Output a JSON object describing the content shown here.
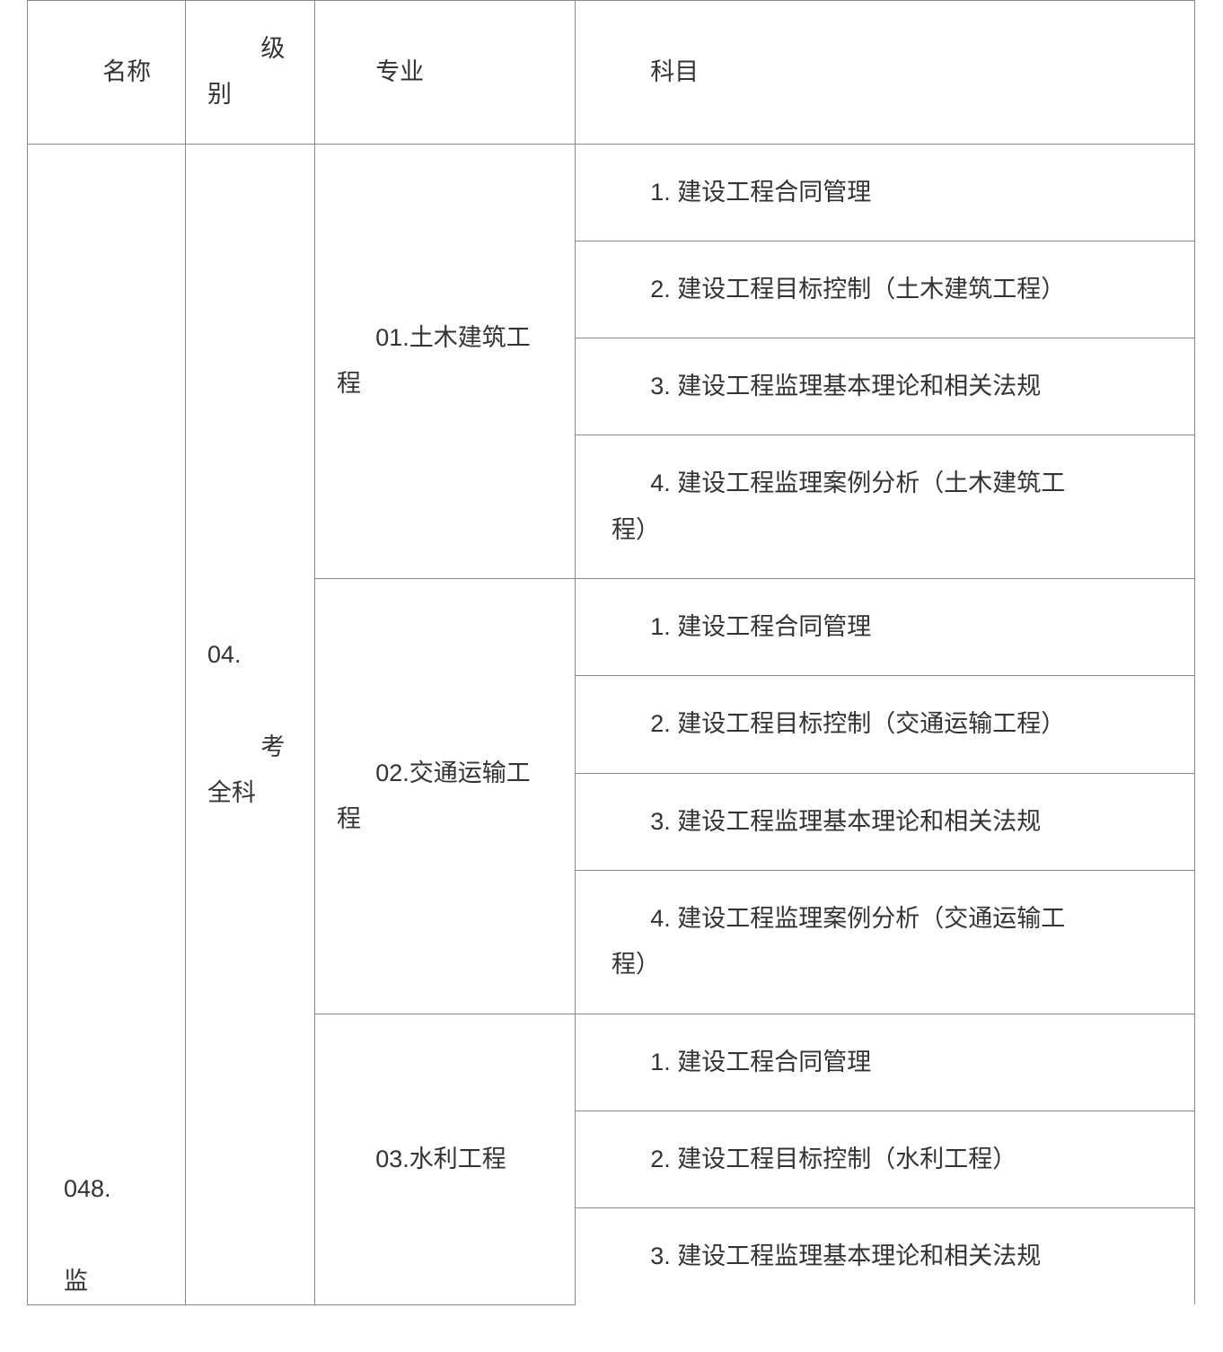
{
  "table": {
    "headers": {
      "name": "名称",
      "level_before": "级",
      "level_after": "别",
      "major": "专业",
      "subject": "科目"
    },
    "name_cell": {
      "line1": "048.",
      "line2": "监"
    },
    "level_cell": {
      "line1": "04.",
      "line2_prefix": "考",
      "line3": "全科"
    },
    "majors": [
      {
        "label_line1": "01.土木建筑工",
        "label_line2": "程",
        "subjects": [
          "1.  建设工程合同管理",
          "2.  建设工程目标控制（土木建筑工程）",
          "3.  建设工程监理基本理论和相关法规"
        ],
        "last_subject_line1": "4.  建设工程监理案例分析（土木建筑工",
        "last_subject_line2": "程）"
      },
      {
        "label_line1": "02.交通运输工",
        "label_line2": "程",
        "subjects": [
          "1.  建设工程合同管理",
          "2.  建设工程目标控制（交通运输工程）",
          "3.  建设工程监理基本理论和相关法规"
        ],
        "last_subject_line1": "4.  建设工程监理案例分析（交通运输工",
        "last_subject_line2": "程）"
      },
      {
        "label": "03.水利工程",
        "subjects": [
          "1.  建设工程合同管理",
          "2.  建设工程目标控制（水利工程）",
          "3.  建设工程监理基本理论和相关法规"
        ]
      }
    ]
  }
}
